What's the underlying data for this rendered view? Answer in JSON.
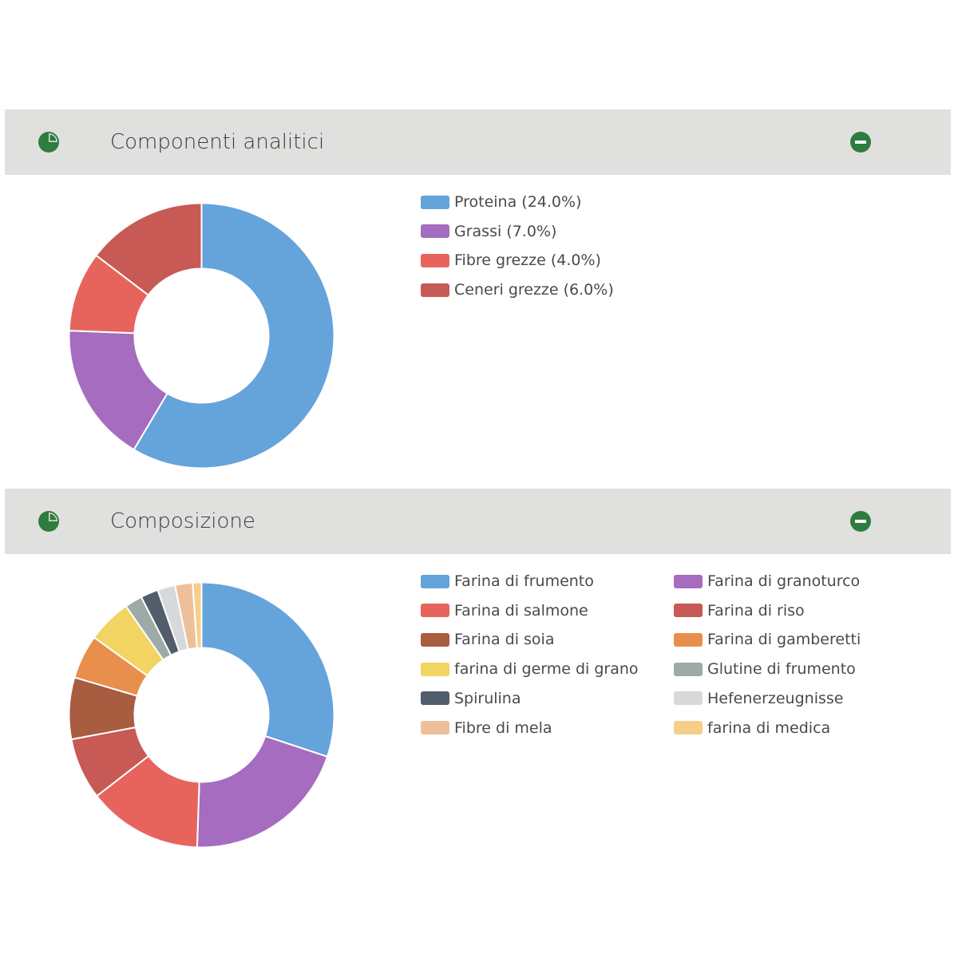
{
  "panels": [
    {
      "title": "Componenti analitici",
      "header_icon": "pie-chart-icon",
      "collapse_icon": "minus-circle-icon"
    },
    {
      "title": "Composizione",
      "header_icon": "pie-chart-icon",
      "collapse_icon": "minus-circle-icon"
    }
  ],
  "colors": {
    "header_bg": "#e0e1df",
    "icon_green": "#2e7d3e"
  },
  "chart_data": [
    {
      "type": "pie",
      "donut": true,
      "legend_position": "right",
      "categories": [
        "Proteina (24.0%)",
        "Grassi (7.0%)",
        "Fibre grezze (4.0%)",
        "Ceneri grezze (6.0%)"
      ],
      "values": [
        24.0,
        7.0,
        4.0,
        6.0
      ],
      "colors": [
        "#65a3db",
        "#a56cbf",
        "#e7645c",
        "#c75a55"
      ]
    },
    {
      "type": "pie",
      "donut": true,
      "legend_position": "right",
      "categories": [
        "Farina di frumento",
        "Farina di granoturco",
        "Farina di salmone",
        "Farina di riso",
        "Farina di soia",
        "Farina di gamberetti",
        "farina di germe di grano",
        "Glutine di frumento",
        "Spirulina",
        "Hefenerzeugnisse",
        "Fibre di mela",
        "farina di medica"
      ],
      "values": [
        28,
        19,
        13,
        7,
        7,
        5,
        5,
        2,
        2,
        2,
        2,
        1
      ],
      "colors": [
        "#65a3db",
        "#a56cbf",
        "#e7645c",
        "#c75a55",
        "#a85c40",
        "#e98f4d",
        "#f1d461",
        "#9eaaa8",
        "#515d6b",
        "#d7d8d9",
        "#eec09a",
        "#f5cf8a"
      ]
    }
  ]
}
